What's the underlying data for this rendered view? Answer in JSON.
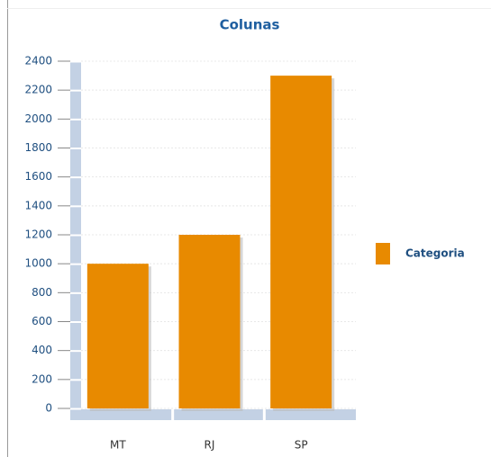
{
  "chart_data": {
    "type": "bar",
    "title": "Colunas",
    "categories": [
      "MT",
      "RJ",
      "SP"
    ],
    "series": [
      {
        "name": "Categoria",
        "color": "#e88a00",
        "values": [
          1000,
          1200,
          2300
        ]
      }
    ],
    "ylim": [
      0,
      2400
    ],
    "yticks": [
      0,
      200,
      400,
      600,
      800,
      1000,
      1200,
      1400,
      1600,
      1800,
      2000,
      2200,
      2400
    ],
    "grid": true,
    "legend": "right"
  }
}
